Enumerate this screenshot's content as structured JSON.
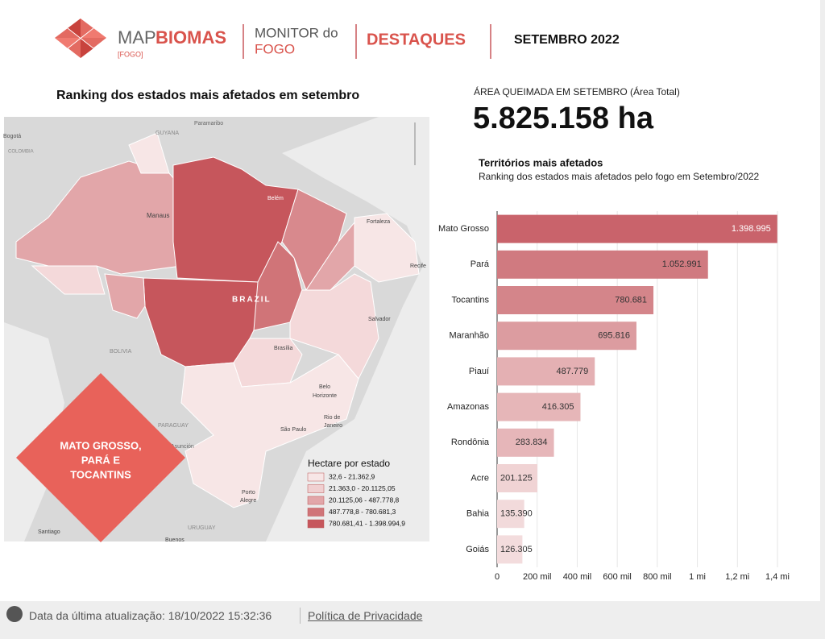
{
  "header": {
    "logo_map": "MAP",
    "logo_biomas": "BIOMAS",
    "logo_tag": "[FOGO]",
    "monitor_line1": "MONITOR do",
    "monitor_line2": "FOGO",
    "section": "DESTAQUES",
    "period": "SETEMBRO 2022"
  },
  "map": {
    "title": "Ranking dos estados mais afetados em setembro",
    "places": [
      "Bogotá",
      "COLOMBIA",
      "GUYANA",
      "Paramaribo",
      "Manaus",
      "Belém",
      "Fortaleza",
      "Recife",
      "BRAZIL",
      "Salvador",
      "BOLIVIA",
      "Brasília",
      "Belo",
      "Horizonte",
      "PARAGUAY",
      "Asunción",
      "São Paulo",
      "Rio de",
      "Janeiro",
      "Porto",
      "Alegre",
      "Santiago",
      "URUGUAY",
      "Buenos"
    ],
    "highlight": [
      "MATO GROSSO,",
      "PARÁ E",
      "TOCANTINS"
    ],
    "legend": {
      "title": "Hectare por estado",
      "items": [
        "32,6 - 21.362,9",
        "21.363,0 - 20.1125,05",
        "20.1125,06 - 487.778,8",
        "487.778,8 - 780.681,3",
        "780.681,41 - 1.398.994,9"
      ],
      "colors": [
        "#f7e6e6",
        "#f0cfd0",
        "#e2a6a9",
        "#d07478",
        "#c6565c"
      ]
    }
  },
  "summary": {
    "label": "ÁREA QUEIMADA EM SETEMBRO (Área Total)",
    "value": "5.825.158 ha"
  },
  "chart_data": {
    "type": "hbar",
    "title": "Territórios mais afetados",
    "subtitle": "Ranking dos estados mais afetados pelo fogo em Setembro/2022",
    "categories": [
      "Mato Grosso",
      "Pará",
      "Tocantins",
      "Maranhão",
      "Piauí",
      "Amazonas",
      "Rondônia",
      "Acre",
      "Bahia",
      "Goiás"
    ],
    "values": [
      1398995,
      1052991,
      780681,
      695816,
      487779,
      416305,
      283834,
      201125,
      135390,
      126305
    ],
    "value_labels": [
      "1.398.995",
      "1.052.991",
      "780.681",
      "695.816",
      "487.779",
      "416.305",
      "283.834",
      "201.125",
      "135.390",
      "126.305"
    ],
    "colors": [
      "#c9636b",
      "#d07a80",
      "#d4858a",
      "#dc9ca0",
      "#e4b0b3",
      "#e6b6b8",
      "#e6b6b9",
      "#f0d3d4",
      "#f2dadb",
      "#f3dcdd"
    ],
    "xlim": [
      0,
      1400000
    ],
    "xticks": [
      0,
      {
        "value": 200000,
        "label": "200 mil"
      },
      {
        "value": 400000,
        "label": "400 mil"
      },
      {
        "value": 600000,
        "label": "600 mil"
      },
      {
        "value": 800000,
        "label": "800 mil"
      },
      {
        "value": 1000000,
        "label": "1 mi"
      },
      {
        "value": 1200000,
        "label": "1,2 mi"
      },
      {
        "value": 1400000,
        "label": "1,4 mi"
      }
    ],
    "grid": true
  },
  "footer": {
    "updated": "Data da última atualização: 18/10/2022 15:32:36",
    "privacy": "Política de Privacidade"
  }
}
